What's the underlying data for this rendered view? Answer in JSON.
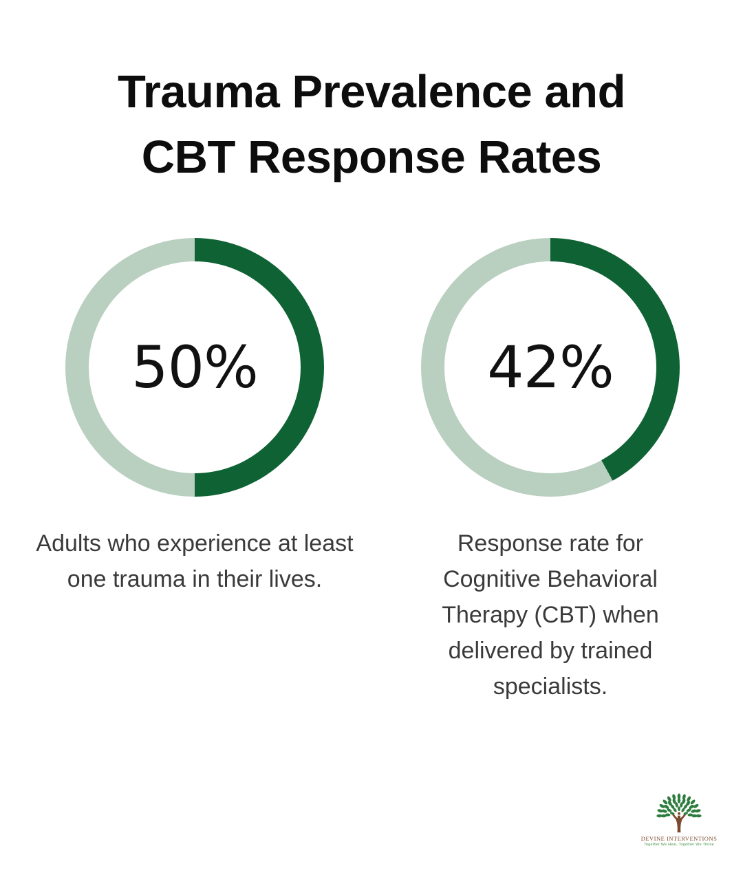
{
  "page": {
    "background": "#ffffff"
  },
  "title": {
    "line1": "Trauma Prevalence and",
    "line2": "CBT Response Rates"
  },
  "chart_data": [
    {
      "type": "pie",
      "variant": "donut",
      "value": 50,
      "total": 100,
      "value_label": "50%",
      "caption": "Adults who experience at least one trauma in their lives.",
      "start_angle_deg": 0,
      "direction": "clockwise",
      "colors": {
        "filled": "#0E6233",
        "track": "#B9CFC0",
        "hole": "#FFFFFF"
      }
    },
    {
      "type": "pie",
      "variant": "donut",
      "value": 42,
      "total": 100,
      "value_label": "42%",
      "caption": "Response rate for Cognitive Behavioral Therapy (CBT) when delivered by trained specialists.",
      "start_angle_deg": 0,
      "direction": "clockwise",
      "colors": {
        "filled": "#0E6233",
        "track": "#B9CFC0",
        "hole": "#FFFFFF"
      }
    }
  ],
  "logo": {
    "name": "DEVINE INTERVENTIONS",
    "tagline": "Together We Heal, Together We Thrive",
    "name_color": "#7B4A2E",
    "tagline_color": "#48984C",
    "leaf_color": "#2E7D3E",
    "trunk_color": "#7B4A2E"
  },
  "text_colors": {
    "title": "#0D0D0D",
    "value_label": "#111111",
    "caption": "#3A3A3A"
  }
}
